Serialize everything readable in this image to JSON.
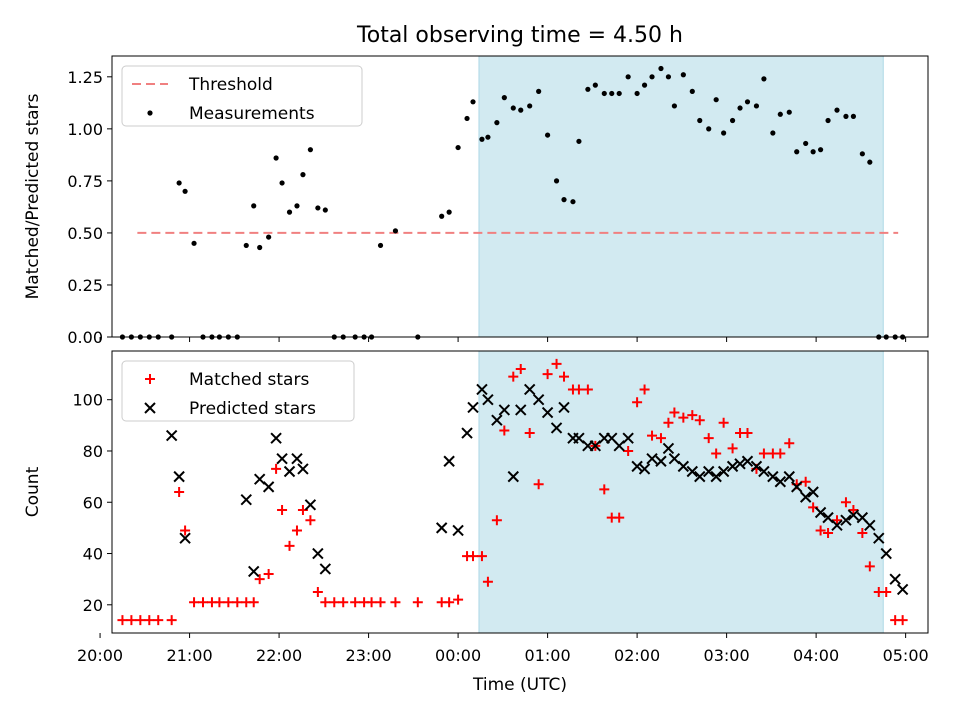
{
  "title": "Total observing time = 4.50 h",
  "colors": {
    "threshold": "#f08080",
    "measurement": "#000000",
    "matched": "#ff0000",
    "predicted": "#000000",
    "observing_span": "#add8e6"
  },
  "chart_data": [
    {
      "type": "scatter",
      "panel": "top",
      "ylabel": "Matched/Predicted stars",
      "xlabel": "",
      "xlim": [
        "20:08",
        "05:15"
      ],
      "ylim": [
        0,
        1.35
      ],
      "y_ticks": [
        "0.00",
        "0.25",
        "0.50",
        "0.75",
        "1.00",
        "1.25"
      ],
      "shaded_span": [
        "00:14",
        "04:45"
      ],
      "legend": {
        "position": "top-left",
        "entries": [
          "Threshold",
          "Measurements"
        ]
      },
      "threshold": {
        "name": "Threshold",
        "style": "dashed",
        "x": [
          "20:25",
          "04:55"
        ],
        "y": 0.5
      },
      "series": [
        {
          "name": "Measurements",
          "marker": "dot",
          "x": [
            "20:15",
            "20:21",
            "20:27",
            "20:33",
            "20:39",
            "20:48",
            "20:53",
            "20:57",
            "21:03",
            "21:09",
            "21:15",
            "21:20",
            "21:26",
            "21:32",
            "21:38",
            "21:43",
            "21:47",
            "21:53",
            "21:58",
            "22:02",
            "22:07",
            "22:12",
            "22:16",
            "22:21",
            "22:26",
            "22:31",
            "22:37",
            "22:43",
            "22:51",
            "22:57",
            "23:02",
            "23:08",
            "23:18",
            "23:33",
            "23:49",
            "23:54",
            "24:00",
            "24:06",
            "24:10",
            "24:16",
            "24:20",
            "24:26",
            "24:31",
            "24:37",
            "24:42",
            "24:48",
            "24:54",
            "25:00",
            "25:06",
            "25:11",
            "25:17",
            "25:21",
            "25:27",
            "25:32",
            "25:38",
            "25:43",
            "25:48",
            "25:54",
            "26:00",
            "26:05",
            "26:10",
            "26:16",
            "26:21",
            "26:25",
            "26:31",
            "26:37",
            "26:42",
            "26:48",
            "26:53",
            "26:58",
            "27:04",
            "27:09",
            "27:14",
            "27:20",
            "27:25",
            "27:31",
            "27:36",
            "27:42",
            "27:47",
            "27:53",
            "27:58",
            "28:03",
            "28:08",
            "28:14",
            "28:20",
            "28:25",
            "28:31",
            "28:36",
            "28:42",
            "28:47",
            "28:53",
            "28:58"
          ],
          "y": [
            0,
            0,
            0,
            0,
            0,
            0,
            0.74,
            0.7,
            0.45,
            0,
            0,
            0,
            0,
            0,
            0.44,
            0.63,
            0.43,
            0.48,
            0.86,
            0.74,
            0.6,
            0.63,
            0.78,
            0.9,
            0.62,
            0.61,
            0,
            0,
            0,
            0,
            0,
            0.44,
            0.51,
            0,
            0.58,
            0.6,
            0.91,
            1.05,
            1.13,
            0.95,
            0.96,
            1.03,
            1.15,
            1.1,
            1.09,
            1.11,
            1.18,
            0.97,
            0.75,
            0.66,
            0.65,
            0.94,
            1.19,
            1.21,
            1.17,
            1.17,
            1.17,
            1.25,
            1.17,
            1.21,
            1.25,
            1.29,
            1.25,
            1.11,
            1.26,
            1.18,
            1.04,
            1.0,
            1.14,
            0.98,
            1.04,
            1.1,
            1.13,
            1.11,
            1.24,
            0.98,
            1.07,
            1.08,
            0.89,
            0.93,
            0.89,
            0.9,
            1.04,
            1.09,
            1.06,
            1.06,
            0.88,
            0.84,
            0,
            0,
            0,
            0
          ]
        }
      ]
    },
    {
      "type": "scatter",
      "panel": "bottom",
      "ylabel": "Count",
      "xlabel": "Time (UTC)",
      "xlim": [
        "20:08",
        "05:15"
      ],
      "ylim": [
        9,
        119
      ],
      "y_ticks": [
        "20",
        "40",
        "60",
        "80",
        "100"
      ],
      "x_ticks": [
        "20:00",
        "21:00",
        "22:00",
        "23:00",
        "00:00",
        "01:00",
        "02:00",
        "03:00",
        "04:00",
        "05:00"
      ],
      "shaded_span": [
        "00:14",
        "04:45"
      ],
      "legend": {
        "position": "top-left",
        "entries": [
          "Matched stars",
          "Predicted stars"
        ]
      },
      "series": [
        {
          "name": "Matched stars",
          "marker": "plus",
          "x": [
            "20:15",
            "20:21",
            "20:27",
            "20:33",
            "20:39",
            "20:48",
            "20:53",
            "20:57",
            "21:03",
            "21:09",
            "21:15",
            "21:20",
            "21:26",
            "21:32",
            "21:38",
            "21:43",
            "21:47",
            "21:53",
            "21:58",
            "22:02",
            "22:07",
            "22:12",
            "22:16",
            "22:21",
            "22:26",
            "22:31",
            "22:37",
            "22:43",
            "22:51",
            "22:57",
            "23:02",
            "23:08",
            "23:18",
            "23:33",
            "23:49",
            "23:54",
            "24:00",
            "24:06",
            "24:10",
            "24:16",
            "24:20",
            "24:26",
            "24:31",
            "24:37",
            "24:42",
            "24:48",
            "24:54",
            "25:00",
            "25:06",
            "25:11",
            "25:17",
            "25:21",
            "25:27",
            "25:32",
            "25:38",
            "25:43",
            "25:48",
            "25:54",
            "26:00",
            "26:05",
            "26:10",
            "26:16",
            "26:21",
            "26:25",
            "26:31",
            "26:37",
            "26:42",
            "26:48",
            "26:53",
            "26:58",
            "27:04",
            "27:09",
            "27:14",
            "27:20",
            "27:25",
            "27:31",
            "27:36",
            "27:42",
            "27:47",
            "27:53",
            "27:58",
            "28:03",
            "28:08",
            "28:14",
            "28:20",
            "28:25",
            "28:31",
            "28:36",
            "28:42",
            "28:47",
            "28:53",
            "28:58"
          ],
          "y": [
            14,
            14,
            14,
            14,
            14,
            14,
            64,
            49,
            21,
            21,
            21,
            21,
            21,
            21,
            21,
            21,
            30,
            32,
            73,
            57,
            43,
            49,
            57,
            53,
            25,
            21,
            21,
            21,
            21,
            21,
            21,
            21,
            21,
            21,
            21,
            21,
            22,
            39,
            39,
            39,
            29,
            53,
            88,
            109,
            112,
            87,
            67,
            110,
            114,
            109,
            104,
            104,
            104,
            82,
            65,
            54,
            54,
            80,
            99,
            104,
            86,
            85,
            91,
            95,
            93,
            94,
            92,
            85,
            79,
            91,
            81,
            87,
            87,
            73,
            79,
            79,
            79,
            83,
            67,
            68,
            58,
            49,
            48,
            53,
            60,
            57,
            48,
            35,
            25,
            25,
            14,
            14
          ]
        },
        {
          "name": "Predicted stars",
          "marker": "cross",
          "x": [
            "20:48",
            "20:53",
            "20:57",
            "21:38",
            "21:43",
            "21:47",
            "21:53",
            "21:58",
            "22:02",
            "22:07",
            "22:12",
            "22:16",
            "22:21",
            "22:26",
            "22:31",
            "23:49",
            "23:54",
            "24:00",
            "24:06",
            "24:10",
            "24:16",
            "24:20",
            "24:26",
            "24:31",
            "24:37",
            "24:42",
            "24:48",
            "24:54",
            "25:00",
            "25:06",
            "25:11",
            "25:17",
            "25:21",
            "25:27",
            "25:32",
            "25:38",
            "25:43",
            "25:48",
            "25:54",
            "26:00",
            "26:05",
            "26:10",
            "26:16",
            "26:21",
            "26:25",
            "26:31",
            "26:37",
            "26:42",
            "26:48",
            "26:53",
            "26:58",
            "27:04",
            "27:09",
            "27:14",
            "27:20",
            "27:25",
            "27:31",
            "27:36",
            "27:42",
            "27:47",
            "27:53",
            "27:58",
            "28:03",
            "28:08",
            "28:14",
            "28:20",
            "28:25",
            "28:31",
            "28:36",
            "28:42",
            "28:47",
            "28:53",
            "28:58"
          ],
          "y": [
            86,
            70,
            46,
            61,
            33,
            69,
            66,
            85,
            77,
            72,
            77,
            73,
            59,
            40,
            34,
            50,
            76,
            49,
            87,
            97,
            104,
            100,
            92,
            96,
            70,
            96,
            104,
            100,
            95,
            89,
            97,
            85,
            85,
            82,
            82,
            85,
            85,
            82,
            85,
            74,
            73,
            77,
            76,
            81,
            77,
            74,
            72,
            70,
            72,
            70,
            72,
            74,
            75,
            76,
            74,
            72,
            70,
            68,
            70,
            66,
            62,
            64,
            56,
            54,
            51,
            53,
            55,
            54,
            51,
            46,
            40,
            30,
            26
          ]
        }
      ]
    }
  ]
}
